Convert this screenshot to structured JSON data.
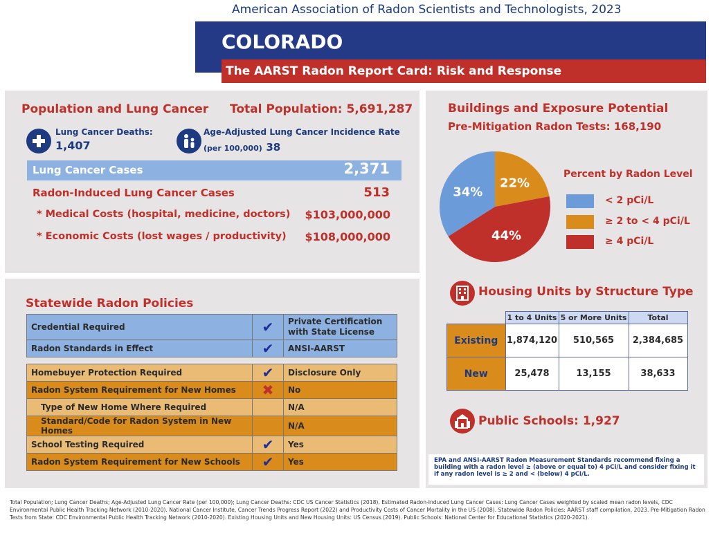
{
  "header": {
    "org": "American Association of Radon Scientists and Technologists, 2023",
    "state": "COLORADO",
    "subtitle": "The AARST Radon Report Card: Risk and Response"
  },
  "population": {
    "heading": "Population and Lung Cancer",
    "total_population": "Total Population: 5,691,287",
    "deaths_label": "Lung Cancer Deaths:",
    "deaths_value": "1,407",
    "incidence_label": "Age-Adjusted Lung Cancer Incidence Rate",
    "incidence_sub": "(per 100,000)",
    "incidence_value": "38",
    "cases_label": "Lung Cancer Cases",
    "cases_value": "2,371",
    "radon_cases_label": "Radon-Induced Lung Cancer Cases",
    "radon_cases_value": "513",
    "medical_label": "* Medical Costs (hospital, medicine, doctors)",
    "medical_value": "$103,000,000",
    "economic_label": "* Economic Costs (lost wages / productivity)",
    "economic_value": "$108,000,000"
  },
  "policies": {
    "heading": "Statewide Radon Policies",
    "rows": [
      {
        "label": "Credential Required",
        "mark": "check",
        "value": "Private Certification with State License"
      },
      {
        "label": "Radon Standards in Effect",
        "mark": "check",
        "value": "ANSI-AARST"
      },
      {
        "label": "Homebuyer Protection Required",
        "mark": "check",
        "value": "Disclosure Only"
      },
      {
        "label": "Radon System Requirement for New Homes",
        "mark": "cross",
        "value": "No"
      },
      {
        "label": "Type of New Home Where Required",
        "mark": "",
        "value": "N/A"
      },
      {
        "label": "Standard/Code for Radon System in New Homes",
        "mark": "",
        "value": "N/A"
      },
      {
        "label": "School Testing Required",
        "mark": "check",
        "value": "Yes"
      },
      {
        "label": "Radon System Requirement for New Schools",
        "mark": "check",
        "value": "Yes"
      }
    ],
    "check_glyph": "✔",
    "cross_glyph": "✖"
  },
  "buildings": {
    "heading": "Buildings and Exposure Potential",
    "tests": "Pre-Mitigation Radon Tests: 168,190",
    "legend_title": "Percent by Radon Level",
    "legend": [
      {
        "label": "< 2 pCi/L",
        "color": "#6b9bd8"
      },
      {
        "label": "≥ 2 to < 4 pCi/L",
        "color": "#d98c1c"
      },
      {
        "label": "≥ 4 pCi/L",
        "color": "#c0302a"
      }
    ],
    "housing_heading": "Housing Units by Structure Type",
    "housing_cols": [
      "1 to 4 Units",
      "5 or More Units",
      "Total"
    ],
    "housing_rows": [
      {
        "label": "Existing",
        "values": [
          "1,874,120",
          "510,565",
          "2,384,685"
        ]
      },
      {
        "label": "New",
        "values": [
          "25,478",
          "13,155",
          "38,633"
        ]
      }
    ],
    "schools": "Public Schools: 1,927",
    "note": "EPA and ANSI-AARST Radon Measurement Standards recommend fixing a building with a radon level ≥ (above or equal to) 4 pCi/L and consider fixing it if any radon level is ≥ 2 and < (below) 4 pCi/L."
  },
  "chart_data": {
    "type": "pie",
    "categories": [
      "< 2 pCi/L",
      "≥ 2 to < 4 pCi/L",
      "≥ 4 pCi/L"
    ],
    "values": [
      34,
      22,
      44
    ],
    "labels": [
      "34%",
      "22%",
      "44%"
    ],
    "colors": [
      "#6b9bd8",
      "#d98c1c",
      "#c0302a"
    ]
  },
  "footnote": "Total Population; Lung Cancer Deaths; Age-Adjusted Lung Cancer Rate (per 100,000); Lung Cancer Deaths: CDC US Cancer Statistics (2018). Estimated Radon-Induced Lung Cancer Cases: Lung Cancer Cases weighted by scaled mean radon levels, CDC Environmental Public Health Tracking Network (2010-2020). National Cancer Institute, Cancer Trends Progress Report (2022) and Productivity Costs of Cancer Mortality in the US (2008). Statewide Radon Policies: AARST staff compilation, 2023. Pre-Mitigation Radon Tests from State: CDC Environmental Public Health Tracking Network (2010-2020). Existing Housing Units and New Housing Units: US Census (2019). Public Schools: National Center for Educational Statistics (2020-2021)."
}
